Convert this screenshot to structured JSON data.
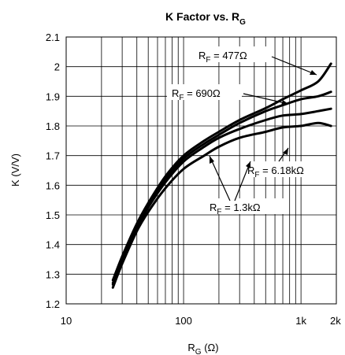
{
  "chart_data": {
    "type": "line",
    "title": {
      "main": "K Factor vs. R",
      "sub": "G"
    },
    "xlabel": {
      "main": "R",
      "sub": "G",
      "rest": " (Ω)"
    },
    "ylabel": "K (V/V)",
    "x_scale": "log",
    "xlim": [
      10,
      2000
    ],
    "ylim": [
      1.2,
      2.1
    ],
    "grid": true,
    "x_ticks": [
      {
        "value": 10,
        "label": "10"
      },
      {
        "value": 100,
        "label": "100"
      },
      {
        "value": 1000,
        "label": "1k"
      },
      {
        "value": 2000,
        "label": "2k"
      }
    ],
    "y_ticks": [
      {
        "value": 1.2,
        "label": "1.2"
      },
      {
        "value": 1.3,
        "label": "1.3"
      },
      {
        "value": 1.4,
        "label": "1.4"
      },
      {
        "value": 1.5,
        "label": "1.5"
      },
      {
        "value": 1.6,
        "label": "1.6"
      },
      {
        "value": 1.7,
        "label": "1.7"
      },
      {
        "value": 1.8,
        "label": "1.8"
      },
      {
        "value": 1.9,
        "label": "1.9"
      },
      {
        "value": 2.0,
        "label": "2"
      },
      {
        "value": 2.1,
        "label": "2.1"
      }
    ],
    "series": [
      {
        "label": {
          "main": "R",
          "sub": "F",
          "rest": " = 477Ω"
        },
        "x": [
          25,
          30,
          40,
          50,
          70,
          100,
          150,
          200,
          300,
          500,
          700,
          1000,
          1400,
          1800
        ],
        "y": [
          1.28,
          1.36,
          1.47,
          1.54,
          1.63,
          1.7,
          1.75,
          1.78,
          1.82,
          1.86,
          1.89,
          1.92,
          1.95,
          2.01
        ]
      },
      {
        "label": {
          "main": "R",
          "sub": "F",
          "rest": " = 690Ω"
        },
        "x": [
          25,
          30,
          40,
          50,
          70,
          100,
          150,
          200,
          300,
          500,
          700,
          1000,
          1400,
          1800
        ],
        "y": [
          1.27,
          1.35,
          1.46,
          1.53,
          1.62,
          1.69,
          1.74,
          1.77,
          1.81,
          1.85,
          1.87,
          1.89,
          1.9,
          1.915
        ]
      },
      {
        "label": {
          "main": "R",
          "sub": "F",
          "rest": " = 6.18kΩ"
        },
        "x": [
          25,
          30,
          40,
          50,
          70,
          100,
          150,
          200,
          300,
          500,
          700,
          1000,
          1400,
          1800
        ],
        "y": [
          1.265,
          1.345,
          1.455,
          1.525,
          1.61,
          1.68,
          1.73,
          1.76,
          1.79,
          1.82,
          1.835,
          1.84,
          1.85,
          1.858
        ]
      },
      {
        "label": {
          "main": "R",
          "sub": "F",
          "rest": " = 1.3kΩ"
        },
        "x": [
          25,
          30,
          40,
          50,
          70,
          100,
          150,
          200,
          300,
          500,
          700,
          1000,
          1400,
          1800
        ],
        "y": [
          1.255,
          1.335,
          1.445,
          1.51,
          1.59,
          1.655,
          1.7,
          1.73,
          1.76,
          1.78,
          1.795,
          1.8,
          1.81,
          1.8
        ]
      }
    ]
  }
}
